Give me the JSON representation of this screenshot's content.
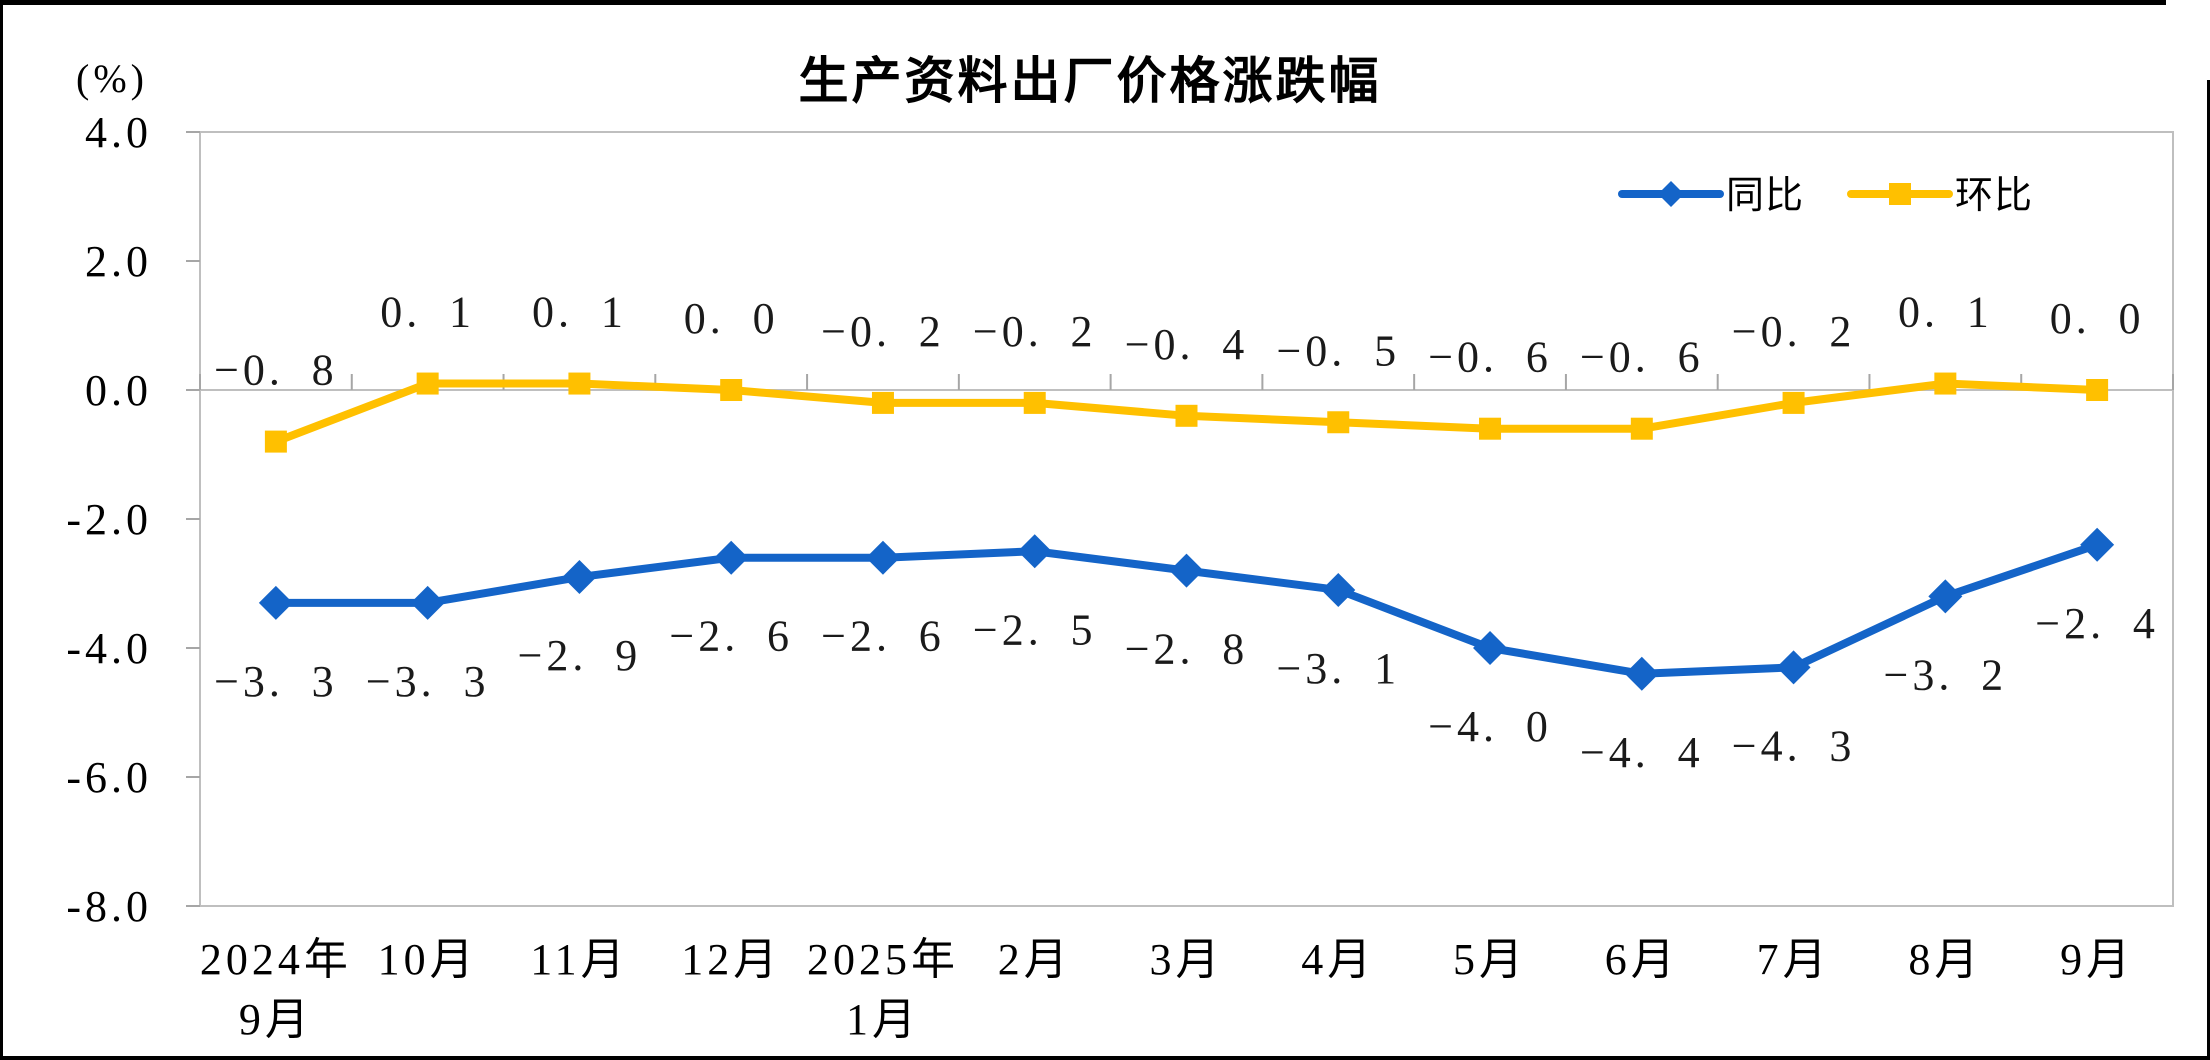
{
  "chart_data": {
    "type": "line",
    "title": "生产资料出厂价格涨跌幅",
    "unit_label": "(%)",
    "categories": [
      {
        "line1": "2024年",
        "line2": "9月"
      },
      {
        "line1": "10月",
        "line2": ""
      },
      {
        "line1": "11月",
        "line2": ""
      },
      {
        "line1": "12月",
        "line2": ""
      },
      {
        "line1": "2025年",
        "line2": "1月"
      },
      {
        "line1": "2月",
        "line2": ""
      },
      {
        "line1": "3月",
        "line2": ""
      },
      {
        "line1": "4月",
        "line2": ""
      },
      {
        "line1": "5月",
        "line2": ""
      },
      {
        "line1": "6月",
        "line2": ""
      },
      {
        "line1": "7月",
        "line2": ""
      },
      {
        "line1": "8月",
        "line2": ""
      },
      {
        "line1": "9月",
        "line2": ""
      }
    ],
    "series": [
      {
        "name": "同比",
        "color": "#1464C8",
        "marker": "diamond",
        "label_side": "below",
        "values": [
          -3.3,
          -3.3,
          -2.9,
          -2.6,
          -2.6,
          -2.5,
          -2.8,
          -3.1,
          -4.0,
          -4.4,
          -4.3,
          -3.2,
          -2.4
        ]
      },
      {
        "name": "环比",
        "color": "#FFC000",
        "marker": "square",
        "label_side": "above",
        "values": [
          -0.8,
          0.1,
          0.1,
          0.0,
          -0.2,
          -0.2,
          -0.4,
          -0.5,
          -0.6,
          -0.6,
          -0.2,
          0.1,
          0.0
        ]
      }
    ],
    "y_axis": {
      "min": -8,
      "max": 4,
      "step": 2,
      "tick_labels": [
        "4.0",
        "2.0",
        "0.0",
        "-2.0",
        "-4.0",
        "-6.0",
        "-8.0"
      ]
    },
    "x_axis": {
      "label_rows": 2
    },
    "legend_position": "top-right",
    "grid": "zero-line-only",
    "colors": {
      "axis_line": "#BFBFBF",
      "tick": "#A6A6A6",
      "text": "#000000",
      "data_label": "#1A1A1A"
    }
  }
}
